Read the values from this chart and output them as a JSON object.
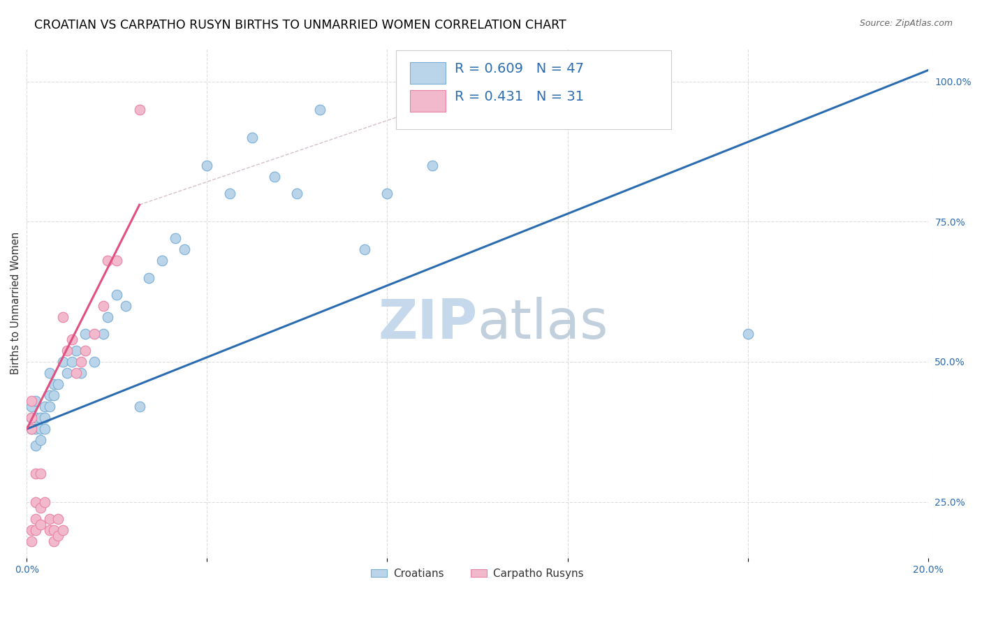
{
  "title": "CROATIAN VS CARPATHO RUSYN BIRTHS TO UNMARRIED WOMEN CORRELATION CHART",
  "source": "Source: ZipAtlas.com",
  "ylabel": "Births to Unmarried Women",
  "xlim": [
    0.0,
    0.2
  ],
  "ylim": [
    0.15,
    1.06
  ],
  "xtick_positions": [
    0.0,
    0.04,
    0.08,
    0.12,
    0.16,
    0.2
  ],
  "xticklabels": [
    "0.0%",
    "",
    "",
    "",
    "",
    "20.0%"
  ],
  "yticks_right": [
    0.25,
    0.5,
    0.75,
    1.0
  ],
  "ytick_right_labels": [
    "25.0%",
    "50.0%",
    "75.0%",
    "100.0%"
  ],
  "croatian_x": [
    0.001,
    0.001,
    0.001,
    0.002,
    0.002,
    0.002,
    0.002,
    0.003,
    0.003,
    0.003,
    0.004,
    0.004,
    0.004,
    0.005,
    0.005,
    0.005,
    0.006,
    0.006,
    0.007,
    0.008,
    0.009,
    0.01,
    0.011,
    0.012,
    0.013,
    0.015,
    0.017,
    0.018,
    0.02,
    0.022,
    0.025,
    0.027,
    0.03,
    0.033,
    0.035,
    0.04,
    0.045,
    0.05,
    0.055,
    0.06,
    0.065,
    0.075,
    0.08,
    0.09,
    0.095,
    0.1,
    0.16
  ],
  "croatian_y": [
    0.38,
    0.4,
    0.42,
    0.35,
    0.38,
    0.4,
    0.43,
    0.36,
    0.38,
    0.4,
    0.38,
    0.4,
    0.42,
    0.42,
    0.44,
    0.48,
    0.44,
    0.46,
    0.46,
    0.5,
    0.48,
    0.5,
    0.52,
    0.48,
    0.55,
    0.5,
    0.55,
    0.58,
    0.62,
    0.6,
    0.42,
    0.65,
    0.68,
    0.72,
    0.7,
    0.85,
    0.8,
    0.9,
    0.83,
    0.8,
    0.95,
    0.7,
    0.8,
    0.85,
    0.93,
    0.93,
    0.55
  ],
  "rusyn_x": [
    0.001,
    0.001,
    0.001,
    0.001,
    0.001,
    0.002,
    0.002,
    0.002,
    0.002,
    0.003,
    0.003,
    0.003,
    0.004,
    0.005,
    0.005,
    0.006,
    0.006,
    0.007,
    0.007,
    0.008,
    0.008,
    0.009,
    0.01,
    0.011,
    0.012,
    0.013,
    0.015,
    0.017,
    0.018,
    0.02,
    0.025
  ],
  "rusyn_y": [
    0.38,
    0.4,
    0.43,
    0.2,
    0.18,
    0.2,
    0.22,
    0.25,
    0.3,
    0.21,
    0.24,
    0.3,
    0.25,
    0.2,
    0.22,
    0.18,
    0.2,
    0.19,
    0.22,
    0.58,
    0.2,
    0.52,
    0.54,
    0.48,
    0.5,
    0.52,
    0.55,
    0.6,
    0.68,
    0.68,
    0.95
  ],
  "blue_dot_color": "#bad4ea",
  "blue_dot_edge": "#7aadd4",
  "pink_dot_color": "#f2b8cb",
  "pink_dot_edge": "#e882a4",
  "blue_line_color": "#2b6cb0",
  "pink_line_color": "#e05080",
  "gray_dash_color": "#d0b8c8",
  "watermark_color": "#ccddf0",
  "watermark_font_color": "#c5d8ec",
  "R_croatian": 0.609,
  "N_croatian": 47,
  "R_rusyn": 0.431,
  "N_rusyn": 31,
  "legend_text_color": "#2b6cb0",
  "tick_color": "#2b6cb0",
  "title_fontsize": 12.5,
  "tick_fontsize": 10,
  "legend_fontsize": 14
}
